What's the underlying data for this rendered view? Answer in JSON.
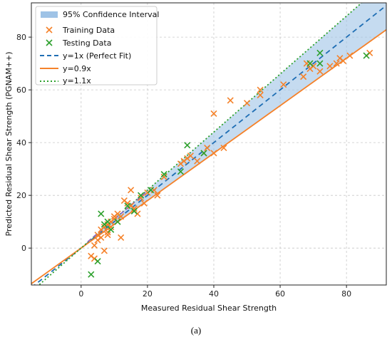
{
  "chart_data": {
    "type": "scatter",
    "xlabel": "Measured Residual Shear Strength",
    "ylabel": "Predicted Residual Shear Strength (PGNAM++)",
    "xlim": [
      -15,
      92
    ],
    "ylim": [
      -14,
      93
    ],
    "xticks": [
      0,
      20,
      40,
      60,
      80
    ],
    "yticks": [
      0,
      20,
      40,
      60,
      80
    ],
    "grid": true,
    "legend_position": "top-left",
    "legend": [
      {
        "label": "95% Confidence Interval",
        "kind": "band"
      },
      {
        "label": "Training Data",
        "kind": "marker"
      },
      {
        "label": "Testing Data",
        "kind": "marker"
      },
      {
        "label": "y=1x (Perfect Fit)",
        "kind": "dashed"
      },
      {
        "label": "y=0.9x",
        "kind": "solid"
      },
      {
        "label": "y=1.1x",
        "kind": "dotted"
      }
    ],
    "colors": {
      "band": "#9fc3e6",
      "training": "#f5822a",
      "testing": "#2ca02c",
      "perfect_fit": "#1f6eb4",
      "y09": "#f5822a",
      "y11": "#2ca02c",
      "fit_segment": "#9467bd"
    },
    "lines": [
      {
        "name": "y=1x (Perfect Fit)",
        "slope": 1.0
      },
      {
        "name": "y=0.9x",
        "slope": 0.9
      },
      {
        "name": "y=1.1x",
        "slope": 1.1
      }
    ],
    "series": [
      {
        "name": "Training Data",
        "points": [
          [
            3,
            -3
          ],
          [
            4,
            1
          ],
          [
            4,
            -4
          ],
          [
            5,
            5
          ],
          [
            5,
            3
          ],
          [
            6,
            7
          ],
          [
            6,
            4
          ],
          [
            7,
            8
          ],
          [
            7,
            -1
          ],
          [
            8,
            9
          ],
          [
            8,
            6
          ],
          [
            8,
            5
          ],
          [
            9,
            8
          ],
          [
            9,
            10
          ],
          [
            10,
            12
          ],
          [
            10,
            11
          ],
          [
            11,
            13
          ],
          [
            12,
            4
          ],
          [
            12,
            12
          ],
          [
            13,
            18
          ],
          [
            14,
            17
          ],
          [
            15,
            22
          ],
          [
            15,
            16
          ],
          [
            16,
            15
          ],
          [
            17,
            13
          ],
          [
            18,
            19
          ],
          [
            19,
            17
          ],
          [
            20,
            21
          ],
          [
            22,
            22
          ],
          [
            23,
            20
          ],
          [
            25,
            27
          ],
          [
            30,
            32
          ],
          [
            31,
            33
          ],
          [
            32,
            34
          ],
          [
            33,
            35
          ],
          [
            35,
            33
          ],
          [
            37,
            36
          ],
          [
            38,
            38
          ],
          [
            40,
            51
          ],
          [
            40,
            36
          ],
          [
            43,
            38
          ],
          [
            45,
            56
          ],
          [
            50,
            55
          ],
          [
            54,
            58
          ],
          [
            54,
            60
          ],
          [
            61,
            62
          ],
          [
            67,
            65
          ],
          [
            68,
            70
          ],
          [
            69,
            68
          ],
          [
            70,
            69
          ],
          [
            72,
            67
          ],
          [
            75,
            69
          ],
          [
            77,
            70
          ],
          [
            78,
            72
          ],
          [
            79,
            71
          ],
          [
            81,
            73
          ],
          [
            87,
            74
          ]
        ]
      },
      {
        "name": "Testing Data",
        "points": [
          [
            3,
            -10
          ],
          [
            5,
            -5
          ],
          [
            6,
            13
          ],
          [
            7,
            9
          ],
          [
            8,
            10
          ],
          [
            9,
            7
          ],
          [
            11,
            10
          ],
          [
            14,
            16
          ],
          [
            16,
            14
          ],
          [
            18,
            20
          ],
          [
            21,
            22
          ],
          [
            25,
            28
          ],
          [
            30,
            29
          ],
          [
            32,
            39
          ],
          [
            37,
            36
          ],
          [
            69,
            70
          ],
          [
            72,
            74
          ],
          [
            72,
            70
          ],
          [
            86,
            73
          ]
        ]
      }
    ]
  },
  "caption": "(a)"
}
